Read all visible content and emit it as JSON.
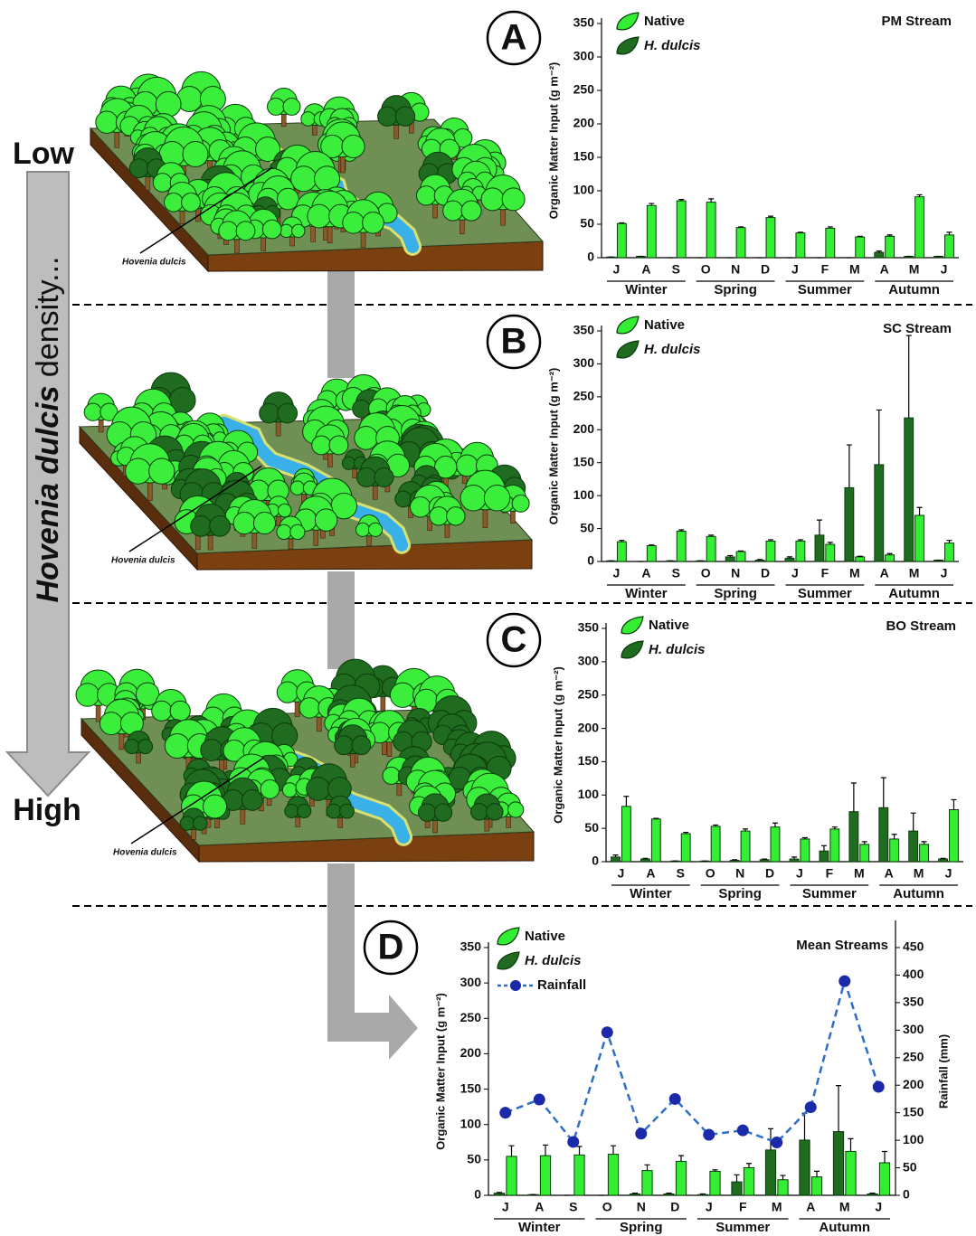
{
  "illustration": {
    "low": "Low",
    "high": "High",
    "density_species": "Hovenia dulcis",
    "density_rest": " density...",
    "tree_labels": [
      "Hovenia dulcis",
      "Hovenia dulcis",
      "Hovenia dulcis"
    ]
  },
  "chart_data": [
    {
      "type": "bar",
      "letter": "A",
      "title": "PM Stream",
      "y_label": "Organic Matter Input (g m⁻²)",
      "categories": [
        "J",
        "A",
        "S",
        "O",
        "N",
        "D",
        "J",
        "F",
        "M",
        "A",
        "M",
        "J"
      ],
      "groups": [
        "Winter",
        "Spring",
        "Summer",
        "Autumn"
      ],
      "series": [
        {
          "name": "Native",
          "color": "#33ee33",
          "values": [
            51,
            78,
            85,
            83,
            45,
            60,
            37,
            44,
            31,
            32,
            91,
            34
          ],
          "errors": [
            1,
            3,
            2,
            5,
            1,
            2,
            1,
            2,
            1,
            2,
            3,
            4
          ]
        },
        {
          "name": "H. dulcis",
          "color": "#1f6b1f",
          "values": [
            1,
            2,
            0,
            0,
            0,
            0,
            0,
            0,
            0,
            8,
            2,
            2
          ],
          "errors": [
            0,
            0,
            0,
            0,
            0,
            0,
            0,
            0,
            0,
            2,
            0,
            0
          ]
        }
      ],
      "ylim": [
        0,
        350
      ],
      "yticks": [
        0,
        50,
        100,
        150,
        200,
        250,
        300,
        350
      ]
    },
    {
      "type": "bar",
      "letter": "B",
      "title": "SC Stream",
      "y_label": "Organic Matter Input (g m⁻²)",
      "categories": [
        "J",
        "A",
        "S",
        "O",
        "N",
        "D",
        "J",
        "F",
        "M",
        "A",
        "M",
        "J"
      ],
      "groups": [
        "Winter",
        "Spring",
        "Summer",
        "Autumn"
      ],
      "series": [
        {
          "name": "Native",
          "color": "#33ee33",
          "values": [
            30,
            24,
            46,
            38,
            15,
            31,
            31,
            26,
            7,
            10,
            70,
            28
          ],
          "errors": [
            2,
            1,
            2,
            2,
            1,
            2,
            2,
            3,
            1,
            2,
            12,
            4
          ]
        },
        {
          "name": "H. dulcis",
          "color": "#1f6b1f",
          "values": [
            1,
            0,
            1,
            1,
            7,
            2,
            5,
            40,
            112,
            147,
            218,
            2
          ],
          "errors": [
            0,
            0,
            0,
            0,
            2,
            1,
            2,
            23,
            65,
            83,
            125,
            0
          ]
        }
      ],
      "ylim": [
        0,
        350
      ],
      "yticks": [
        0,
        50,
        100,
        150,
        200,
        250,
        300,
        350
      ]
    },
    {
      "type": "bar",
      "letter": "C",
      "title": "BO Stream",
      "y_label": "Organic Matter Input (g m⁻²)",
      "categories": [
        "J",
        "A",
        "S",
        "O",
        "N",
        "D",
        "J",
        "F",
        "M",
        "A",
        "M",
        "J"
      ],
      "groups": [
        "Winter",
        "Spring",
        "Summer",
        "Autumn"
      ],
      "series": [
        {
          "name": "Native",
          "color": "#33ee33",
          "values": [
            83,
            64,
            42,
            53,
            46,
            52,
            34,
            49,
            26,
            34,
            26,
            78
          ],
          "errors": [
            15,
            1,
            2,
            2,
            3,
            6,
            2,
            3,
            4,
            7,
            4,
            15
          ]
        },
        {
          "name": "H. dulcis",
          "color": "#1f6b1f",
          "values": [
            7,
            4,
            1,
            1,
            2,
            3,
            4,
            16,
            75,
            81,
            46,
            4
          ],
          "errors": [
            3,
            1,
            0,
            0,
            1,
            1,
            3,
            8,
            43,
            45,
            27,
            1
          ]
        }
      ],
      "ylim": [
        0,
        350
      ],
      "yticks": [
        0,
        50,
        100,
        150,
        200,
        250,
        300,
        350
      ]
    },
    {
      "type": "bar",
      "letter": "D",
      "title": "Mean Streams",
      "y_label": "Organic Matter Input (g m⁻²)",
      "y2_label": "Rainfall (mm)",
      "categories": [
        "J",
        "A",
        "S",
        "O",
        "N",
        "D",
        "J",
        "F",
        "M",
        "A",
        "M",
        "J"
      ],
      "groups": [
        "Winter",
        "Spring",
        "Summer",
        "Autumn"
      ],
      "series": [
        {
          "name": "Native",
          "color": "#33ee33",
          "values": [
            55,
            56,
            57,
            58,
            35,
            48,
            34,
            39,
            22,
            26,
            62,
            46
          ],
          "errors": [
            15,
            15,
            12,
            12,
            8,
            8,
            2,
            6,
            6,
            8,
            18,
            16
          ]
        },
        {
          "name": "H. dulcis",
          "color": "#1f6b1f",
          "values": [
            3,
            1,
            0,
            0,
            2,
            2,
            1,
            19,
            64,
            78,
            90,
            2
          ],
          "errors": [
            1,
            0,
            0,
            0,
            1,
            1,
            1,
            10,
            30,
            38,
            65,
            1
          ]
        },
        {
          "name": "Rainfall",
          "color": "#1a2aa8",
          "axis": "y2",
          "values": [
            150,
            174,
            97,
            296,
            112,
            175,
            110,
            118,
            96,
            160,
            389,
            197
          ]
        }
      ],
      "ylim": [
        0,
        350
      ],
      "yticks": [
        0,
        50,
        100,
        150,
        200,
        250,
        300,
        350
      ],
      "y2lim": [
        0,
        450
      ],
      "y2ticks": [
        0,
        50,
        100,
        150,
        200,
        250,
        300,
        350,
        400,
        450
      ]
    }
  ]
}
